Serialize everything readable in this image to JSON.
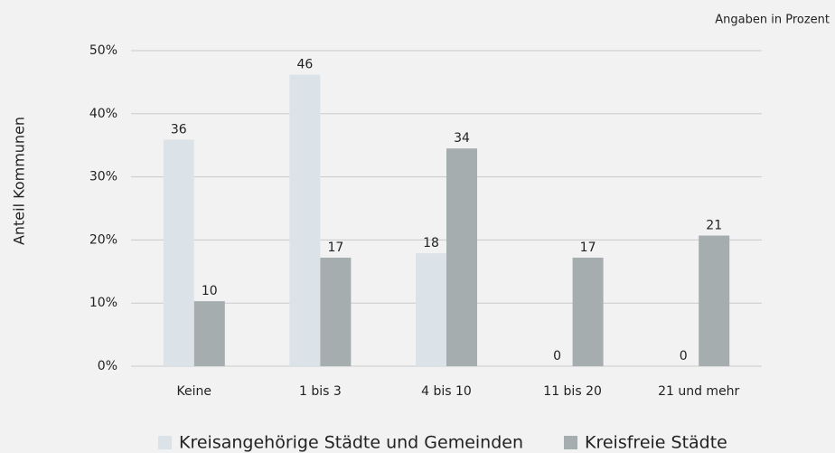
{
  "chart_data": {
    "type": "bar",
    "note": "Angaben in Prozent",
    "y_label": "Anteil Kommunen",
    "categories": [
      "Keine",
      "1 bis 3",
      "4 bis 10",
      "11 bis 20",
      "21 und mehr"
    ],
    "series": [
      {
        "name": "Kreisangehörige Städte und Gemeinden",
        "color": "#dce3e8",
        "values": [
          35.9,
          46.2,
          17.9,
          0,
          0
        ],
        "value_labels": [
          "36",
          "46",
          "18",
          "0",
          "0"
        ]
      },
      {
        "name": "Kreisfreie Städte",
        "color": "#a6adaf",
        "values": [
          10.3,
          17.2,
          34.5,
          17.2,
          20.7
        ],
        "value_labels": [
          "10",
          "17",
          "34",
          "17",
          "21"
        ]
      }
    ],
    "ylim": [
      0,
      50
    ],
    "yticks": [
      {
        "value": 0,
        "label": "0%"
      },
      {
        "value": 10,
        "label": "10%"
      },
      {
        "value": 20,
        "label": "20%"
      },
      {
        "value": 30,
        "label": "30%"
      },
      {
        "value": 40,
        "label": "40%"
      },
      {
        "value": 50,
        "label": "50%"
      }
    ],
    "grid": true,
    "legend": "bottom"
  }
}
